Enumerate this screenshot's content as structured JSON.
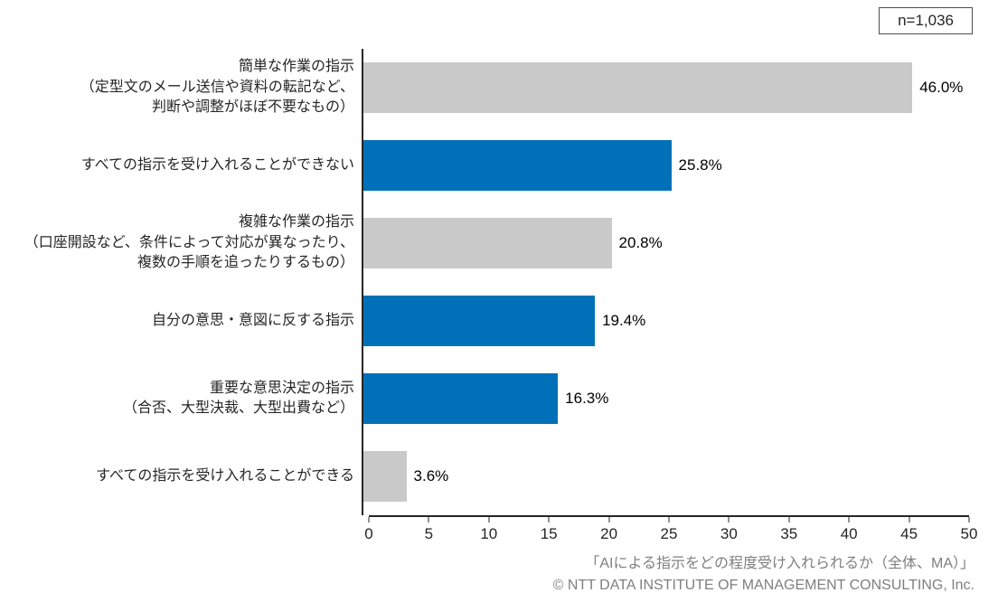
{
  "n_label": "n=1,036",
  "colors": {
    "blue": "#0070b8",
    "gray": "#c9c9c9",
    "axis": "#262626",
    "footer_gray": "#7f7f7f"
  },
  "chart_data": {
    "type": "bar",
    "orientation": "horizontal",
    "title": "",
    "xlabel": "",
    "ylabel": "",
    "xlim": [
      0,
      50
    ],
    "x_ticks": [
      0,
      5,
      10,
      15,
      20,
      25,
      30,
      35,
      40,
      45,
      50
    ],
    "grid": false,
    "legend": false,
    "categories": [
      [
        "簡単な作業の指示",
        "（定型文のメール送信や資料の転記など、",
        "判断や調整がほぼ不要なもの）"
      ],
      [
        "すべての指示を受け入れることができない"
      ],
      [
        "複雑な作業の指示",
        "（口座開設など、条件によって対応が異なったり、",
        "複数の手順を追ったりするもの）"
      ],
      [
        "自分の意思・意図に反する指示"
      ],
      [
        "重要な意思決定の指示",
        "（合否、大型決裁、大型出費など）"
      ],
      [
        "すべての指示を受け入れることができる"
      ]
    ],
    "values": [
      46.0,
      25.8,
      20.8,
      19.4,
      16.3,
      3.6
    ],
    "value_labels": [
      "46.0%",
      "25.8%",
      "20.8%",
      "19.4%",
      "16.3%",
      "3.6%"
    ],
    "bar_colors": [
      "gray",
      "blue",
      "gray",
      "blue",
      "blue",
      "gray"
    ],
    "source": "「AIによる指示をどの程度受け入れられるか（全体、MA）」",
    "copyright": "© NTT DATA INSTITUTE OF MANAGEMENT CONSULTING, Inc."
  }
}
